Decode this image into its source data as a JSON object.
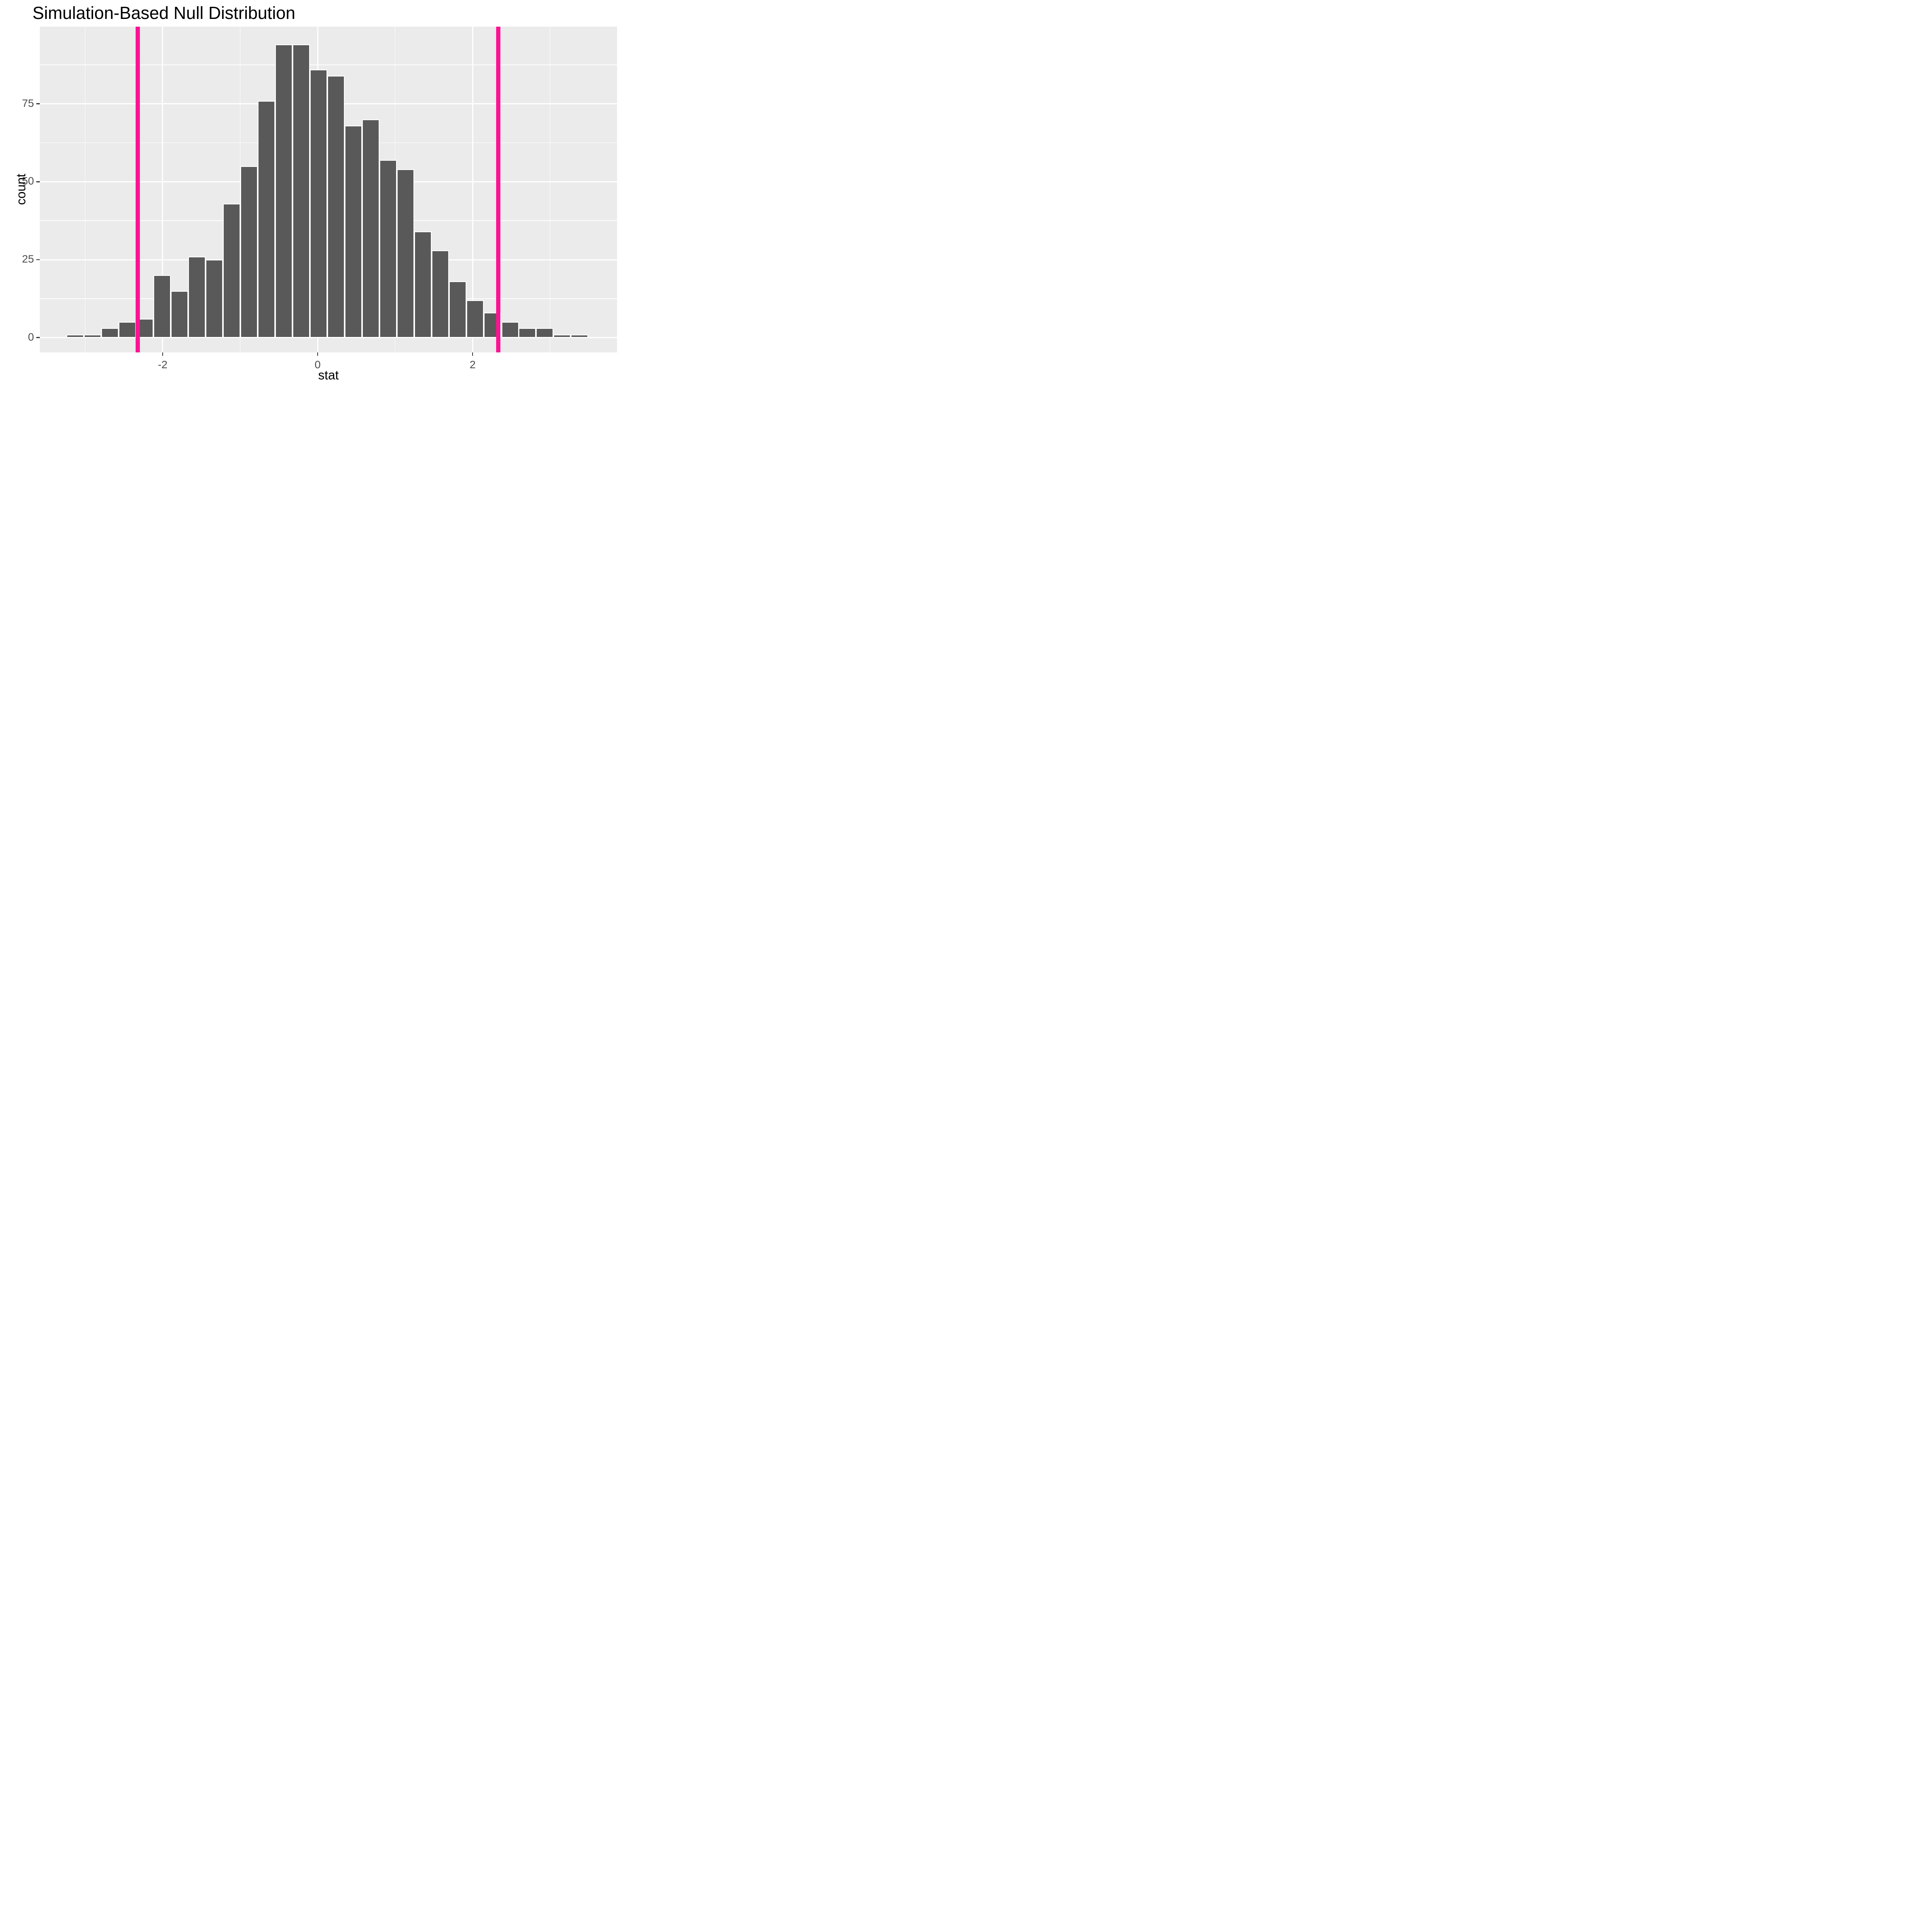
{
  "title": "Simulation-Based Null Distribution",
  "colors": {
    "background": "#FFFFFF",
    "panel_background": "#EBEBEB",
    "gridline": "#FFFFFF",
    "bar_fill": "#595959",
    "bar_outline": "#FFFFFF",
    "obs_stat_line": "#FC1394",
    "tick_mark": "#333333",
    "tick_label": "#4D4D4D",
    "text": "#000000"
  },
  "chart_data": {
    "type": "bar",
    "subtype": "histogram",
    "title": "Simulation-Based Null Distribution",
    "xlabel": "stat",
    "ylabel": "count",
    "xlim": [
      -3.585,
      3.864
    ],
    "ylim": [
      -4.75,
      99.75
    ],
    "grid": "on",
    "legend": "none",
    "bin_width": 0.2244,
    "bin_centers": [
      -3.127,
      -2.903,
      -2.679,
      -2.454,
      -2.23,
      -2.005,
      -1.781,
      -1.557,
      -1.332,
      -1.108,
      -0.883,
      -0.659,
      -0.435,
      -0.21,
      0.014,
      0.239,
      0.463,
      0.687,
      0.912,
      1.136,
      1.361,
      1.585,
      1.809,
      2.034,
      2.258,
      2.483,
      2.707,
      2.931,
      3.156,
      3.38
    ],
    "counts": [
      1,
      1,
      3,
      5,
      6,
      20,
      15,
      26,
      25,
      43,
      55,
      76,
      94,
      94,
      86,
      84,
      68,
      70,
      57,
      54,
      34,
      28,
      18,
      12,
      8,
      5,
      3,
      3,
      1,
      1
    ],
    "obs_stat_lines": [
      -2.32,
      2.33
    ],
    "x_major_ticks": [
      -2,
      0,
      2
    ],
    "x_tick_labels": [
      "-2",
      "0",
      "2"
    ],
    "x_minor_gridlines": [
      -3,
      -1,
      1,
      3
    ],
    "y_major_ticks": [
      0,
      25,
      50,
      75
    ],
    "y_tick_labels": [
      "0",
      "25",
      "50",
      "75"
    ],
    "y_minor_gridlines": [
      12.5,
      37.5,
      62.5,
      87.5
    ]
  }
}
